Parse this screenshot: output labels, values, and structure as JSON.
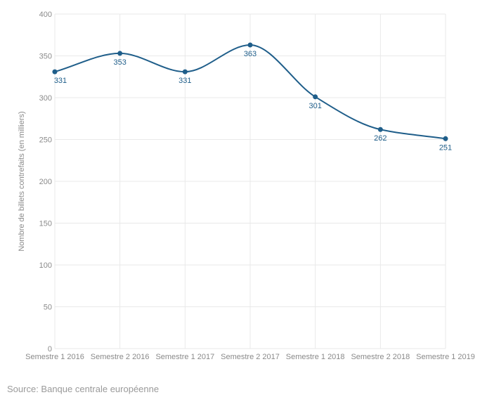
{
  "source": "Source: Banque centrale européenne",
  "chart_data": {
    "type": "line",
    "categories": [
      "Semestre 1 2016",
      "Semestre 2 2016",
      "Semestre 1 2017",
      "Semestre 2 2017",
      "Semestre 1 2018",
      "Semestre 2 2018",
      "Semestre 1 2019"
    ],
    "series": [
      {
        "values": [
          331,
          353,
          331,
          363,
          301,
          262,
          251
        ],
        "color": "#1f5e8a"
      }
    ],
    "ylabel": "Nombre de billets contrefaits (en milliers)",
    "xlabel": "",
    "ylim": [
      0,
      400
    ],
    "yticks": [
      0,
      50,
      100,
      150,
      200,
      250,
      300,
      350,
      400
    ],
    "grid": true,
    "curve": "smooth",
    "data_labels": true
  }
}
